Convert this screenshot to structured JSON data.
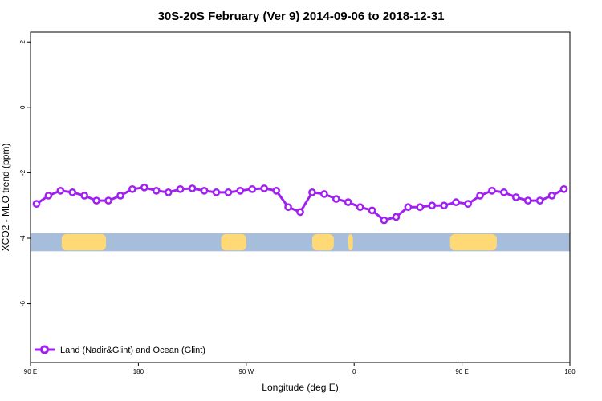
{
  "chart_data": {
    "type": "line",
    "title": "30S-20S February (Ver 9)   2014-09-06 to 2018-12-31",
    "xlabel": "Longitude (deg E)",
    "ylabel": "XCO2 - MLO trend (ppm)",
    "xlim": [
      90,
      540
    ],
    "ylim": [
      -7.8,
      2.3
    ],
    "x_ticks": [
      {
        "value": 90,
        "label": "90 E"
      },
      {
        "value": 180,
        "label": "180"
      },
      {
        "value": 270,
        "label": "90 W"
      },
      {
        "value": 360,
        "label": "0"
      },
      {
        "value": 450,
        "label": "90 E"
      },
      {
        "value": 540,
        "label": "180"
      }
    ],
    "y_ticks": [
      {
        "value": 2,
        "label": "2"
      },
      {
        "value": 0,
        "label": "0"
      },
      {
        "value": -2,
        "label": "-2"
      },
      {
        "value": -4,
        "label": "-4"
      },
      {
        "value": -6,
        "label": "-6"
      }
    ],
    "series": [
      {
        "name": "Land (Nadir&Glint) and Ocean (Glint)",
        "color": "#a020f0",
        "x": [
          95,
          105,
          115,
          125,
          135,
          145,
          155,
          165,
          175,
          185,
          195,
          205,
          215,
          225,
          235,
          245,
          255,
          265,
          275,
          285,
          295,
          305,
          315,
          325,
          335,
          345,
          355,
          365,
          375,
          385,
          395,
          405,
          415,
          425,
          435,
          445,
          455,
          465,
          475,
          485,
          495,
          505,
          515,
          525,
          535
        ],
        "y": [
          -2.95,
          -2.7,
          -2.55,
          -2.6,
          -2.7,
          -2.85,
          -2.85,
          -2.7,
          -2.5,
          -2.45,
          -2.55,
          -2.6,
          -2.5,
          -2.48,
          -2.55,
          -2.6,
          -2.6,
          -2.55,
          -2.5,
          -2.48,
          -2.55,
          -3.05,
          -3.2,
          -2.6,
          -2.65,
          -2.8,
          -2.9,
          -3.05,
          -3.15,
          -3.45,
          -3.35,
          -3.05,
          -3.05,
          -3.0,
          -3.0,
          -2.9,
          -2.95,
          -2.7,
          -2.55,
          -2.6,
          -2.75,
          -2.85,
          -2.85,
          -2.7,
          -2.5
        ]
      }
    ],
    "land_ocean_strip": {
      "y_range": [
        -4.4,
        -3.85
      ],
      "ocean_color": "#a6bddb",
      "land_color": "#fed976",
      "land_segments": [
        [
          116,
          153
        ],
        [
          249,
          270
        ],
        [
          325,
          343
        ],
        [
          355,
          359
        ],
        [
          440,
          479
        ]
      ]
    },
    "legend_position": "bottom-left",
    "grid": false
  }
}
